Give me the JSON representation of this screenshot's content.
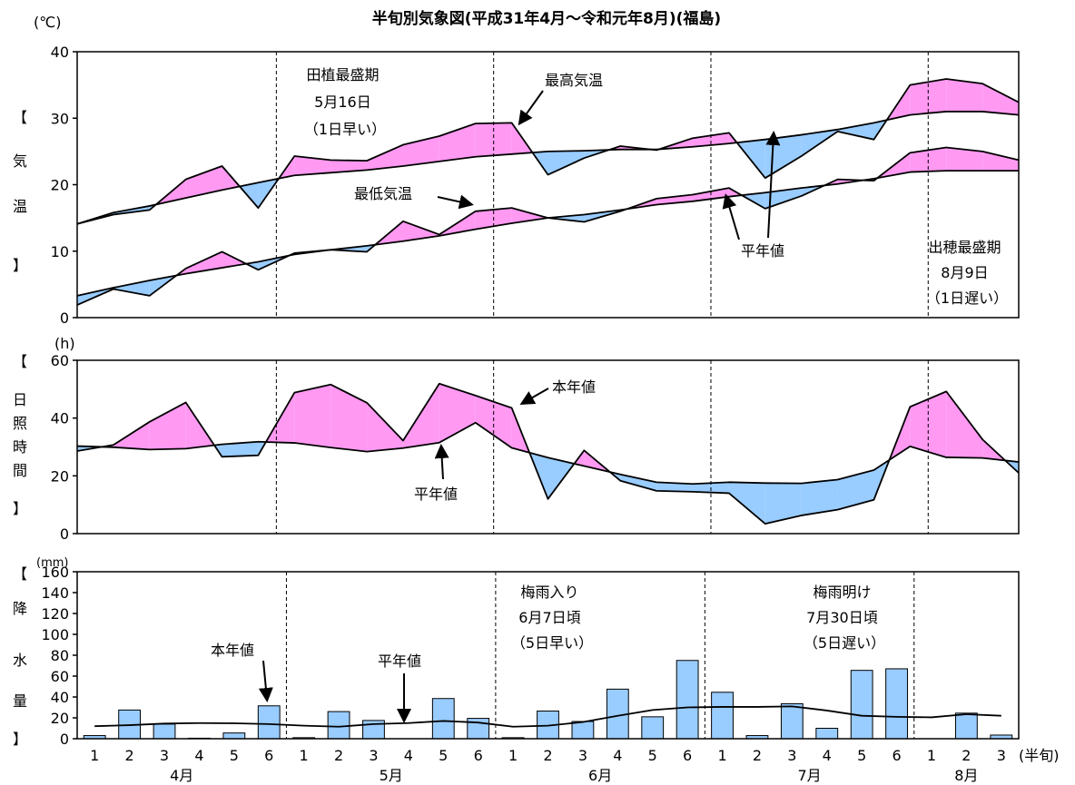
{
  "title": "半旬別気象図(平成31年4月～令和元年8月)(福島)",
  "colors": {
    "above": "#ff99f2",
    "below": "#99ccff",
    "rain_bar": "#99ccff",
    "line": "#000000"
  },
  "chart_data": [
    {
      "type": "area",
      "name": "temperature",
      "unit_label": "(℃)",
      "ylabel_chars": [
        "【",
        "気",
        "温",
        "】"
      ],
      "ylim": [
        0,
        40
      ],
      "yticks": [
        0,
        10,
        20,
        30,
        40
      ],
      "series": [
        {
          "name": "最高気温",
          "values": [
            14.1,
            15.5,
            16.2,
            20.8,
            22.8,
            16.5,
            24.3,
            23.7,
            23.6,
            26.0,
            27.3,
            29.2,
            29.3,
            21.5,
            24.0,
            25.8,
            25.2,
            27.0,
            27.8,
            21.0,
            24.3,
            28.0,
            26.8,
            35.0,
            35.9,
            35.2,
            32.4
          ],
          "normal": [
            14.1,
            15.8,
            16.8,
            18.0,
            19.2,
            20.3,
            21.4,
            21.8,
            22.2,
            22.8,
            23.5,
            24.2,
            24.6,
            25.0,
            25.1,
            25.3,
            25.3,
            25.7,
            26.2,
            26.8,
            27.5,
            28.3,
            29.3,
            30.5,
            31.0,
            31.0,
            30.5
          ]
        },
        {
          "name": "最低気温",
          "values": [
            1.9,
            4.3,
            3.3,
            7.4,
            9.9,
            7.2,
            9.7,
            10.2,
            9.9,
            14.5,
            12.5,
            16.0,
            16.5,
            15.0,
            14.4,
            16.0,
            17.9,
            18.5,
            19.5,
            16.4,
            18.3,
            20.8,
            20.6,
            24.8,
            25.6,
            25.0,
            23.7
          ],
          "normal": [
            3.3,
            4.5,
            5.6,
            6.6,
            7.5,
            8.4,
            9.5,
            10.2,
            10.8,
            11.5,
            12.3,
            13.3,
            14.2,
            15.0,
            15.5,
            16.2,
            17.0,
            17.5,
            18.2,
            18.8,
            19.5,
            20.1,
            20.9,
            21.9,
            22.1,
            22.1,
            22.1
          ]
        }
      ],
      "annotations": [
        {
          "lines": [
            "田植最盛期",
            "5月16日",
            "（1日早い）"
          ]
        },
        {
          "lines": [
            "出穂最盛期",
            "8月9日",
            "（1日遅い）"
          ]
        },
        {
          "lines": [
            "最高気温"
          ]
        },
        {
          "lines": [
            "最低気温"
          ]
        },
        {
          "lines": [
            "平年値"
          ]
        }
      ]
    },
    {
      "type": "area",
      "name": "sunshine",
      "unit_label": "(h)",
      "ylabel_chars": [
        "【",
        "日",
        "照",
        "時",
        "間",
        "】"
      ],
      "ylim": [
        0,
        60
      ],
      "yticks": [
        0,
        20,
        40,
        60
      ],
      "series": [
        {
          "name": "本年値",
          "values": [
            28.6,
            30.7,
            38.7,
            45.4,
            26.6,
            27.1,
            48.8,
            51.6,
            45.3,
            32.2,
            51.9,
            47.8,
            43.5,
            12.0,
            28.8,
            18.3,
            14.8,
            14.5,
            14.0,
            3.4,
            6.3,
            8.3,
            11.7,
            43.9,
            49.2,
            32.6,
            21.0
          ],
          "normal": [
            30.3,
            29.9,
            29.1,
            29.4,
            30.9,
            31.8,
            31.4,
            29.8,
            28.4,
            29.6,
            31.5,
            38.4,
            29.7,
            26.3,
            23.4,
            20.5,
            17.8,
            17.2,
            17.8,
            17.5,
            17.4,
            18.7,
            22.0,
            30.2,
            26.4,
            26.2,
            24.8
          ]
        }
      ],
      "annotations": [
        {
          "lines": [
            "本年値"
          ]
        },
        {
          "lines": [
            "平年値"
          ]
        }
      ]
    },
    {
      "type": "bar",
      "name": "precipitation",
      "unit_label": "(mm)",
      "ylabel_chars": [
        "【",
        "降",
        "水",
        "量",
        "】"
      ],
      "ylim": [
        0,
        160
      ],
      "yticks": [
        0,
        20,
        40,
        60,
        80,
        100,
        120,
        140,
        160
      ],
      "series": [
        {
          "name": "本年値",
          "values": [
            3.0,
            27.5,
            14.0,
            0.5,
            5.5,
            31.5,
            1.0,
            26.0,
            17.5,
            0.0,
            38.5,
            19.5,
            1.0,
            26.5,
            16.5,
            47.5,
            21.0,
            75.0,
            44.5,
            3.0,
            33.5,
            10.0,
            65.5,
            67.0,
            0.0,
            24.5,
            3.5
          ],
          "normal": [
            12.0,
            13.0,
            14.5,
            15.0,
            14.8,
            14.0,
            12.5,
            11.5,
            14.0,
            15.0,
            17.0,
            15.5,
            11.5,
            12.5,
            16.0,
            22.0,
            27.5,
            30.0,
            30.5,
            30.5,
            31.0,
            27.0,
            22.0,
            21.0,
            20.5,
            23.5,
            22.0
          ]
        }
      ],
      "annotations": [
        {
          "lines": [
            "梅雨入り",
            "6月7日頃",
            "（5日早い）"
          ]
        },
        {
          "lines": [
            "梅雨明け",
            "7月30日頃",
            "（5日遅い）"
          ]
        },
        {
          "lines": [
            "本年値"
          ]
        },
        {
          "lines": [
            "平年値"
          ]
        }
      ]
    }
  ],
  "x_axis": {
    "ticks": [
      "1",
      "2",
      "3",
      "4",
      "5",
      "6",
      "1",
      "2",
      "3",
      "4",
      "5",
      "6",
      "1",
      "2",
      "3",
      "4",
      "5",
      "6",
      "1",
      "2",
      "3",
      "4",
      "5",
      "6",
      "1",
      "2",
      "3"
    ],
    "months": [
      {
        "label": "4月",
        "start": 0,
        "count": 6
      },
      {
        "label": "5月",
        "start": 6,
        "count": 6
      },
      {
        "label": "6月",
        "start": 12,
        "count": 6
      },
      {
        "label": "7月",
        "start": 18,
        "count": 6
      },
      {
        "label": "8月",
        "start": 24,
        "count": 3
      }
    ],
    "suffix": "(半旬)"
  }
}
